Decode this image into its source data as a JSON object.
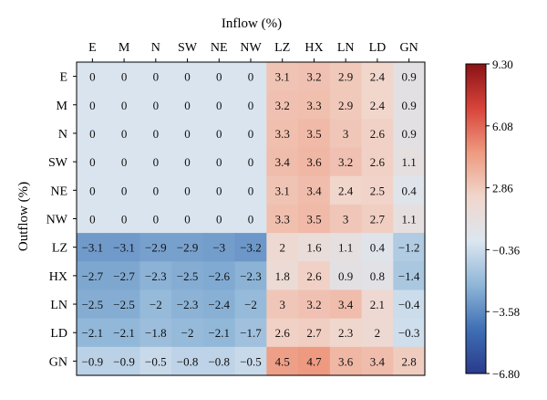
{
  "chart_data": {
    "type": "heatmap",
    "xlabel": "Inflow (%)",
    "ylabel": "Outflow (%)",
    "columns": [
      "E",
      "M",
      "N",
      "SW",
      "NE",
      "NW",
      "LZ",
      "HX",
      "LN",
      "LD",
      "GN"
    ],
    "rows": [
      "E",
      "M",
      "N",
      "SW",
      "NE",
      "NW",
      "LZ",
      "HX",
      "LN",
      "LD",
      "GN"
    ],
    "values": [
      [
        "0",
        "0",
        "0",
        "0",
        "0",
        "0",
        "3.1",
        "3.2",
        "2.9",
        "2.4",
        "0.9"
      ],
      [
        "0",
        "0",
        "0",
        "0",
        "0",
        "0",
        "3.2",
        "3.3",
        "2.9",
        "2.4",
        "0.9"
      ],
      [
        "0",
        "0",
        "0",
        "0",
        "0",
        "0",
        "3.3",
        "3.5",
        "3",
        "2.6",
        "0.9"
      ],
      [
        "0",
        "0",
        "0",
        "0",
        "0",
        "0",
        "3.4",
        "3.6",
        "3.2",
        "2.6",
        "1.1"
      ],
      [
        "0",
        "0",
        "0",
        "0",
        "0",
        "0",
        "3.1",
        "3.4",
        "2.4",
        "2.5",
        "0.4"
      ],
      [
        "0",
        "0",
        "0",
        "0",
        "0",
        "0",
        "3.3",
        "3.5",
        "3",
        "2.7",
        "1.1"
      ],
      [
        "−3.1",
        "−3.1",
        "−2.9",
        "−2.9",
        "−3",
        "−3.2",
        "2",
        "1.6",
        "1.1",
        "0.4",
        "−1.2"
      ],
      [
        "−2.7",
        "−2.7",
        "−2.3",
        "−2.5",
        "−2.6",
        "−2.3",
        "1.8",
        "2.6",
        "0.9",
        "0.8",
        "−1.4"
      ],
      [
        "−2.5",
        "−2.5",
        "−2",
        "−2.3",
        "−2.4",
        "−2",
        "3",
        "3.2",
        "3.4",
        "2.1",
        "−0.4"
      ],
      [
        "−2.1",
        "−2.1",
        "−1.8",
        "−2",
        "−2.1",
        "−1.7",
        "2.6",
        "2.7",
        "2.3",
        "2",
        "−0.3"
      ],
      [
        "−0.9",
        "−0.9",
        "−0.5",
        "−0.8",
        "−0.8",
        "−0.5",
        "4.5",
        "4.7",
        "3.6",
        "3.4",
        "2.8"
      ]
    ],
    "colorbar": {
      "min": -6.8,
      "max": 9.3,
      "ticks": [
        "9.30",
        "6.08",
        "2.86",
        "−0.36",
        "−3.58",
        "−6.80"
      ],
      "colormap": "RdBu_r",
      "colors": [
        "#2a3a8c",
        "#3f6fb4",
        "#8fb6d8",
        "#dce6f0",
        "#f1d6cc",
        "#ee9a80",
        "#d8443a",
        "#8a1216"
      ]
    },
    "grid": false,
    "legend": "colorbar-right"
  }
}
